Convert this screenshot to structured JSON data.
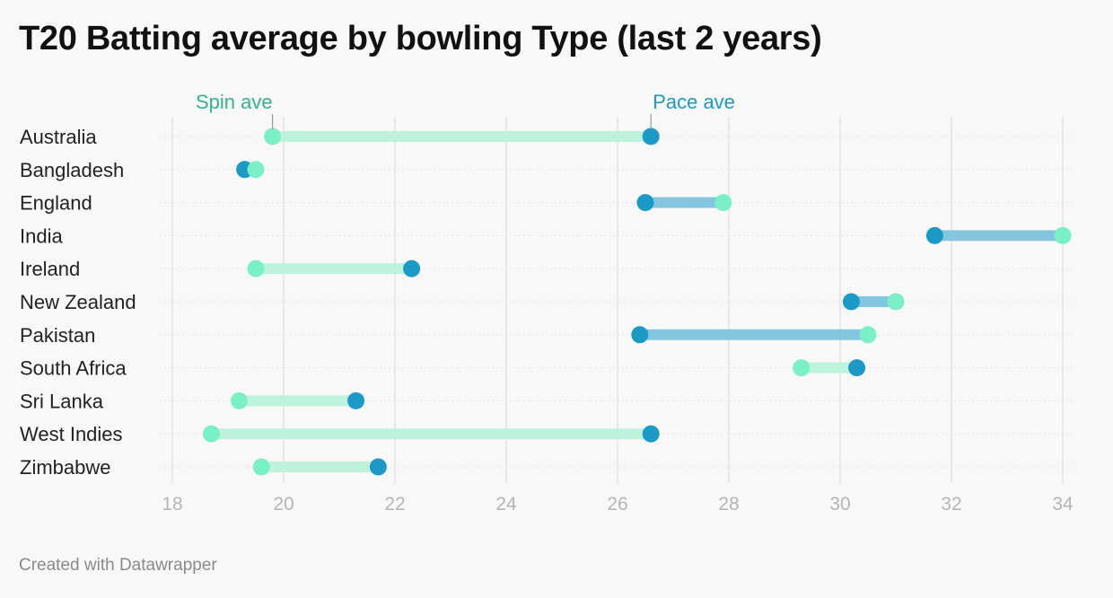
{
  "title": "T20 Batting average by bowling Type (last 2 years)",
  "footer": "Created with Datawrapper",
  "colors": {
    "spin": "#7af0c6",
    "spin_bar": "#bdf3dd",
    "pace": "#1b9ac8",
    "pace_bar": "#84c6e0",
    "spin_label": "#2fb58a",
    "pace_label": "#1a9cc2",
    "grid": "#e3e3e3",
    "row_line": "#e4e4e4"
  },
  "chart_data": {
    "type": "dot-range",
    "title": "T20 Batting average by bowling Type (last 2 years)",
    "xlim": [
      18,
      34
    ],
    "xticks": [
      18,
      20,
      22,
      24,
      26,
      28,
      30,
      32,
      34
    ],
    "grid": true,
    "series_labels": {
      "spin": "Spin ave",
      "pace": "Pace ave"
    },
    "categories": [
      "Australia",
      "Bangladesh",
      "England",
      "India",
      "Ireland",
      "New Zealand",
      "Pakistan",
      "South Africa",
      "Sri Lanka",
      "West Indies",
      "Zimbabwe"
    ],
    "spin": [
      19.8,
      19.5,
      27.9,
      34.0,
      19.5,
      31.0,
      30.5,
      29.3,
      19.2,
      18.7,
      19.6
    ],
    "pace": [
      26.6,
      19.3,
      26.5,
      31.7,
      22.3,
      30.2,
      26.4,
      30.3,
      21.3,
      26.6,
      21.7
    ]
  }
}
